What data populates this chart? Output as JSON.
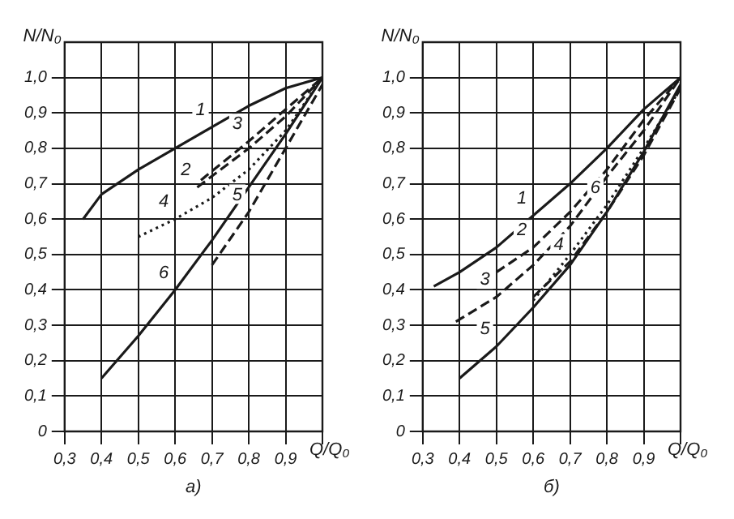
{
  "chart_data": [
    {
      "type": "line",
      "xlabel": "Q/Q₀",
      "ylabel": "N/N₀",
      "annotations": [
        "а)",
        {
          "text": "1",
          "x": 0.7,
          "y": 0.86
        },
        {
          "text": "2",
          "x": 0.66,
          "y": 0.69
        },
        {
          "text": "3",
          "x": 0.8,
          "y": 0.82
        },
        {
          "text": "4",
          "x": 0.6,
          "y": 0.6
        },
        {
          "text": "5",
          "x": 0.8,
          "y": 0.62
        },
        {
          "text": "6",
          "x": 0.6,
          "y": 0.4
        }
      ],
      "xlim": [
        0.3,
        1.0
      ],
      "ylim": [
        0,
        1.1
      ],
      "grid": true,
      "legend": false,
      "xticks": [
        {
          "value": 0.3,
          "label": "0,3"
        },
        {
          "value": 0.4,
          "label": "0,4"
        },
        {
          "value": 0.5,
          "label": "0,5"
        },
        {
          "value": 0.6,
          "label": "0,6"
        },
        {
          "value": 0.7,
          "label": "0,7"
        },
        {
          "value": 0.8,
          "label": "0,8"
        },
        {
          "value": 0.9,
          "label": "0,9"
        },
        {
          "value": 1.0,
          "label": null
        }
      ],
      "yticks": [
        0,
        {
          "value": 0.1,
          "label": "0,1"
        },
        {
          "value": 0.2,
          "label": "0,2"
        },
        {
          "value": 0.3,
          "label": "0,3"
        },
        {
          "value": 0.4,
          "label": "0,4"
        },
        {
          "value": 0.5,
          "label": "0,5"
        },
        {
          "value": 0.6,
          "label": "0,6"
        },
        {
          "value": 0.7,
          "label": "0,7"
        },
        {
          "value": 0.8,
          "label": "0,8"
        },
        {
          "value": 0.9,
          "label": "0,9"
        },
        {
          "value": 1.0,
          "label": "1,0"
        }
      ],
      "series": [
        {
          "color": "#1a1a1a",
          "line_style": "solid",
          "x": [
            0.35,
            0.4,
            0.5,
            0.6,
            0.7,
            0.8,
            0.9,
            1.0
          ],
          "values": [
            0.6,
            0.67,
            0.74,
            0.8,
            0.86,
            0.92,
            0.97,
            1.0
          ]
        },
        {
          "color": "#1a1a1a",
          "line_style": "dashed",
          "x": [
            0.66,
            0.8,
            0.9,
            1.0
          ],
          "values": [
            0.69,
            0.8,
            0.89,
            1.0
          ]
        },
        {
          "color": "#1a1a1a",
          "line_style": "dashed",
          "x": [
            0.67,
            0.8,
            0.9,
            1.0
          ],
          "values": [
            0.71,
            0.82,
            0.91,
            1.0
          ]
        },
        {
          "color": "#1a1a1a",
          "line_style": "dotted",
          "x": [
            0.5,
            0.6,
            0.7,
            0.8,
            0.9,
            1.0
          ],
          "values": [
            0.55,
            0.6,
            0.66,
            0.74,
            0.85,
            1.0
          ]
        },
        {
          "color": "#1a1a1a",
          "line_style": "dashed",
          "x": [
            0.7,
            0.8,
            0.9,
            1.0
          ],
          "values": [
            0.47,
            0.62,
            0.8,
            0.98
          ]
        },
        {
          "color": "#1a1a1a",
          "line_style": "solid",
          "x": [
            0.4,
            0.5,
            0.6,
            0.7,
            0.8,
            0.9,
            1.0
          ],
          "values": [
            0.15,
            0.27,
            0.4,
            0.54,
            0.69,
            0.84,
            1.0
          ]
        }
      ]
    },
    {
      "type": "line",
      "xlabel": "Q/Q₀",
      "ylabel": "N/N₀",
      "annotations": [
        "б)",
        {
          "text": "1",
          "x": 0.6,
          "y": 0.61
        },
        {
          "text": "2",
          "x": 0.6,
          "y": 0.52
        },
        {
          "text": "3",
          "x": 0.5,
          "y": 0.38
        },
        {
          "text": "4",
          "x": 0.7,
          "y": 0.48
        },
        {
          "text": "5",
          "x": 0.5,
          "y": 0.24
        },
        {
          "text": "6",
          "x": 0.8,
          "y": 0.64
        }
      ],
      "xlim": [
        0.3,
        1.0
      ],
      "ylim": [
        0,
        1.1
      ],
      "grid": true,
      "legend": false,
      "xticks": [
        {
          "value": 0.3,
          "label": "0,3"
        },
        {
          "value": 0.4,
          "label": "0,4"
        },
        {
          "value": 0.5,
          "label": "0,5"
        },
        {
          "value": 0.6,
          "label": "0,6"
        },
        {
          "value": 0.7,
          "label": "0,7"
        },
        {
          "value": 0.8,
          "label": "0,8"
        },
        {
          "value": 0.9,
          "label": "0,9"
        },
        {
          "value": 1.0,
          "label": null
        }
      ],
      "yticks": [
        0,
        {
          "value": 0.1,
          "label": "0,1"
        },
        {
          "value": 0.2,
          "label": "0,2"
        },
        {
          "value": 0.3,
          "label": "0,3"
        },
        {
          "value": 0.4,
          "label": "0,4"
        },
        {
          "value": 0.5,
          "label": "0,5"
        },
        {
          "value": 0.6,
          "label": "0,6"
        },
        {
          "value": 0.7,
          "label": "0,7"
        },
        {
          "value": 0.8,
          "label": "0,8"
        },
        {
          "value": 0.9,
          "label": "0,9"
        },
        {
          "value": 1.0,
          "label": "1,0"
        }
      ],
      "series": [
        {
          "color": "#1a1a1a",
          "line_style": "solid",
          "x": [
            0.33,
            0.4,
            0.5,
            0.6,
            0.7,
            0.8,
            0.9,
            1.0
          ],
          "values": [
            0.41,
            0.45,
            0.52,
            0.61,
            0.7,
            0.8,
            0.91,
            1.0
          ]
        },
        {
          "color": "#1a1a1a",
          "line_style": "dashed",
          "x": [
            0.5,
            0.6,
            0.7,
            0.8,
            0.9,
            1.0
          ],
          "values": [
            0.45,
            0.52,
            0.62,
            0.74,
            0.88,
            1.0
          ]
        },
        {
          "color": "#1a1a1a",
          "line_style": "dashed",
          "x": [
            0.39,
            0.5,
            0.6,
            0.7,
            0.8,
            0.9,
            1.0
          ],
          "values": [
            0.31,
            0.38,
            0.47,
            0.58,
            0.72,
            0.85,
            1.0
          ]
        },
        {
          "color": "#1a1a1a",
          "line_style": "dashed",
          "x": [
            0.6,
            0.7,
            0.8,
            0.9,
            1.0
          ],
          "values": [
            0.38,
            0.48,
            0.62,
            0.78,
            0.97
          ]
        },
        {
          "color": "#1a1a1a",
          "line_style": "solid",
          "x": [
            0.4,
            0.5,
            0.6,
            0.7,
            0.8,
            0.9,
            1.0
          ],
          "values": [
            0.15,
            0.24,
            0.35,
            0.47,
            0.62,
            0.79,
            0.98
          ]
        },
        {
          "color": "#1a1a1a",
          "line_style": "dotted",
          "x": [
            0.6,
            0.7,
            0.8,
            0.9,
            1.0
          ],
          "values": [
            0.37,
            0.5,
            0.64,
            0.8,
            0.97
          ]
        }
      ]
    }
  ]
}
